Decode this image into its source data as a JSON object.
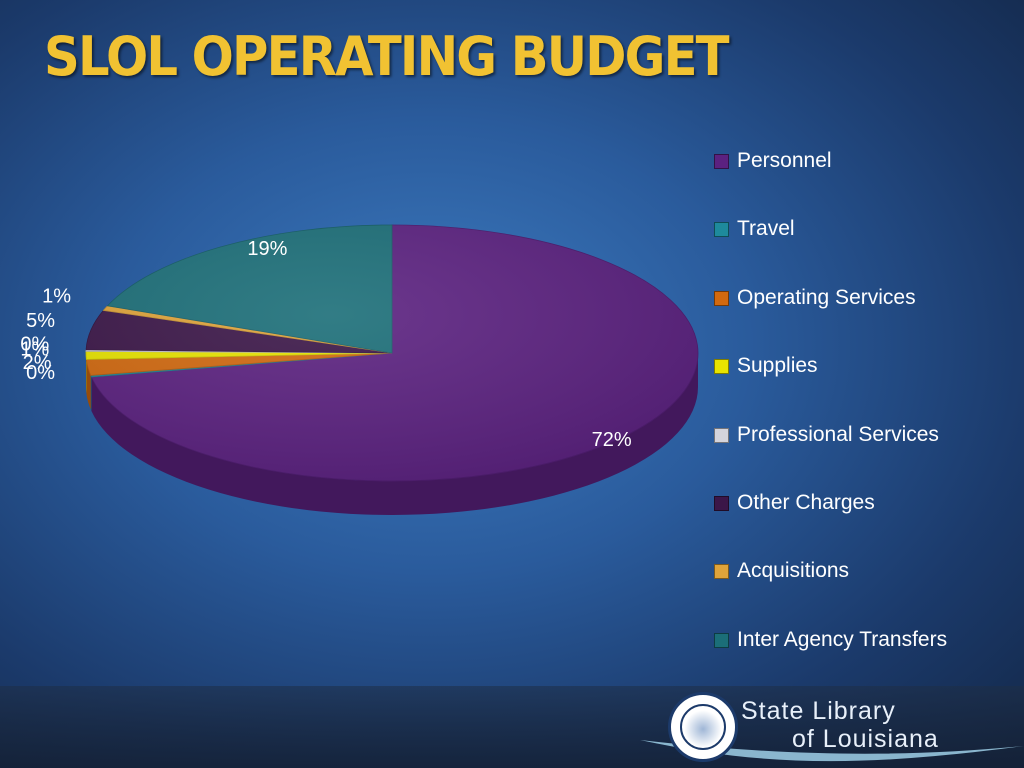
{
  "slide": {
    "title": "SLOL OPERATING BUDGET"
  },
  "logo": {
    "line1": "State Library",
    "line2": "of Louisiana",
    "seal_text": "STATE OF LOUISIANA · UNION JUSTICE CONFIDENCE · STATE LIBRARY OF LOUISIANA"
  },
  "chart_data": {
    "type": "pie",
    "style": "3d",
    "title": "",
    "legend_position": "right",
    "slices": [
      {
        "name": "Personnel",
        "label": "72%",
        "value": 72,
        "color": "#5b2180"
      },
      {
        "name": "Travel",
        "label": "0%",
        "value": 0.2,
        "color": "#1e8a9c"
      },
      {
        "name": "Operating Services",
        "label": "2%",
        "value": 2,
        "color": "#d2690f"
      },
      {
        "name": "Supplies",
        "label": "1%",
        "value": 1,
        "color": "#e8e400"
      },
      {
        "name": "Professional Services",
        "label": "0%",
        "value": 0.2,
        "color": "#d4d4dc"
      },
      {
        "name": "Other Charges",
        "label": "5%",
        "value": 5,
        "color": "#3b1648"
      },
      {
        "name": "Acquisitions",
        "label": "1%",
        "value": 0.6,
        "color": "#e0a43a"
      },
      {
        "name": "Inter Agency Transfers",
        "label": "19%",
        "value": 19,
        "color": "#1b6e78"
      }
    ]
  }
}
